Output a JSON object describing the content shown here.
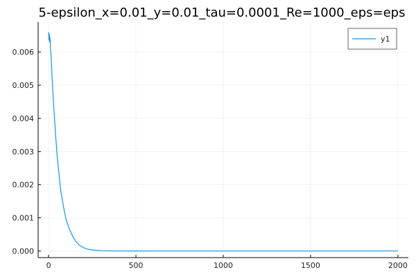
{
  "chart_data": {
    "type": "line",
    "title": "5-epsilon_x=0.01_y=0.01_tau=0.0001_Re=1000_eps=eps",
    "xlabel": "",
    "ylabel": "",
    "xlim": [
      -60,
      2060
    ],
    "ylim": [
      -0.0002,
      0.0069
    ],
    "xticks": [
      0,
      500,
      1000,
      1500,
      2000
    ],
    "xtick_labels": [
      "0",
      "500",
      "1000",
      "1500",
      "2000"
    ],
    "yticks": [
      0.0,
      0.001,
      0.002,
      0.003,
      0.004,
      0.005,
      0.006
    ],
    "ytick_labels": [
      "0.000",
      "0.001",
      "0.002",
      "0.003",
      "0.004",
      "0.005",
      "0.006"
    ],
    "grid": true,
    "legend_position": "top-right",
    "series": [
      {
        "name": "y1",
        "color": "#009AFA",
        "x": [
          0,
          2,
          4,
          6,
          8,
          10,
          15,
          20,
          30,
          40,
          50,
          60,
          70,
          80,
          90,
          100,
          120,
          140,
          160,
          180,
          200,
          220,
          250,
          300,
          350,
          400,
          500,
          600,
          800,
          1000,
          1200,
          1400,
          1600,
          1800,
          2000
        ],
        "y": [
          0.0066,
          0.00635,
          0.00655,
          0.0063,
          0.00645,
          0.0062,
          0.0058,
          0.0052,
          0.0043,
          0.0035,
          0.0028,
          0.0023,
          0.0018,
          0.0015,
          0.0012,
          0.00095,
          0.00065,
          0.00042,
          0.00026,
          0.00016,
          0.0001,
          6e-05,
          3e-05,
          1e-05,
          4e-06,
          2e-06,
          5e-07,
          1e-07,
          0.0,
          0.0,
          0.0,
          0.0,
          0.0,
          0.0,
          0.0
        ]
      }
    ]
  }
}
